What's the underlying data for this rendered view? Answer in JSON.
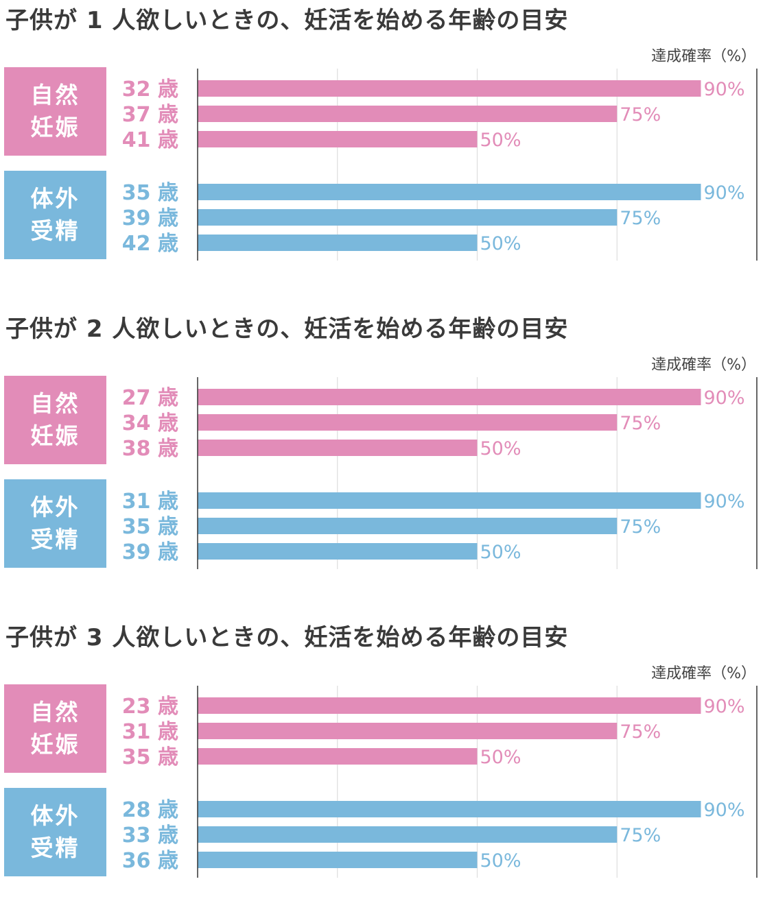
{
  "colors": {
    "natural": "#e28cb8",
    "ivf": "#7ab8dc",
    "axis": "#333333",
    "grid": "#dddddd",
    "title": "#3a3a3a"
  },
  "chart_data": [
    {
      "type": "bar",
      "orientation": "horizontal",
      "title": "子供が 1 人欲しいときの、妊活を始める年齢の目安",
      "unit_label": "達成確率（%）",
      "xlim": [
        0,
        100
      ],
      "grid": true,
      "groups": [
        {
          "name": "自然妊娠",
          "label_lines": [
            "自然",
            "妊娠"
          ],
          "color_key": "natural",
          "bars": [
            {
              "category": "32 歳",
              "value": 90,
              "label": "90%"
            },
            {
              "category": "37 歳",
              "value": 75,
              "label": "75%"
            },
            {
              "category": "41 歳",
              "value": 50,
              "label": "50%"
            }
          ]
        },
        {
          "name": "体外受精",
          "label_lines": [
            "体外",
            "受精"
          ],
          "color_key": "ivf",
          "bars": [
            {
              "category": "35 歳",
              "value": 90,
              "label": "90%"
            },
            {
              "category": "39 歳",
              "value": 75,
              "label": "75%"
            },
            {
              "category": "42 歳",
              "value": 50,
              "label": "50%"
            }
          ]
        }
      ]
    },
    {
      "type": "bar",
      "orientation": "horizontal",
      "title": "子供が 2 人欲しいときの、妊活を始める年齢の目安",
      "unit_label": "達成確率（%）",
      "xlim": [
        0,
        100
      ],
      "grid": true,
      "groups": [
        {
          "name": "自然妊娠",
          "label_lines": [
            "自然",
            "妊娠"
          ],
          "color_key": "natural",
          "bars": [
            {
              "category": "27 歳",
              "value": 90,
              "label": "90%"
            },
            {
              "category": "34 歳",
              "value": 75,
              "label": "75%"
            },
            {
              "category": "38 歳",
              "value": 50,
              "label": "50%"
            }
          ]
        },
        {
          "name": "体外受精",
          "label_lines": [
            "体外",
            "受精"
          ],
          "color_key": "ivf",
          "bars": [
            {
              "category": "31 歳",
              "value": 90,
              "label": "90%"
            },
            {
              "category": "35 歳",
              "value": 75,
              "label": "75%"
            },
            {
              "category": "39 歳",
              "value": 50,
              "label": "50%"
            }
          ]
        }
      ]
    },
    {
      "type": "bar",
      "orientation": "horizontal",
      "title": "子供が 3 人欲しいときの、妊活を始める年齢の目安",
      "unit_label": "達成確率（%）",
      "xlim": [
        0,
        100
      ],
      "grid": true,
      "groups": [
        {
          "name": "自然妊娠",
          "label_lines": [
            "自然",
            "妊娠"
          ],
          "color_key": "natural",
          "bars": [
            {
              "category": "23 歳",
              "value": 90,
              "label": "90%"
            },
            {
              "category": "31 歳",
              "value": 75,
              "label": "75%"
            },
            {
              "category": "35 歳",
              "value": 50,
              "label": "50%"
            }
          ]
        },
        {
          "name": "体外受精",
          "label_lines": [
            "体外",
            "受精"
          ],
          "color_key": "ivf",
          "bars": [
            {
              "category": "28 歳",
              "value": 90,
              "label": "90%"
            },
            {
              "category": "33 歳",
              "value": 75,
              "label": "75%"
            },
            {
              "category": "36 歳",
              "value": 50,
              "label": "50%"
            }
          ]
        }
      ]
    }
  ]
}
